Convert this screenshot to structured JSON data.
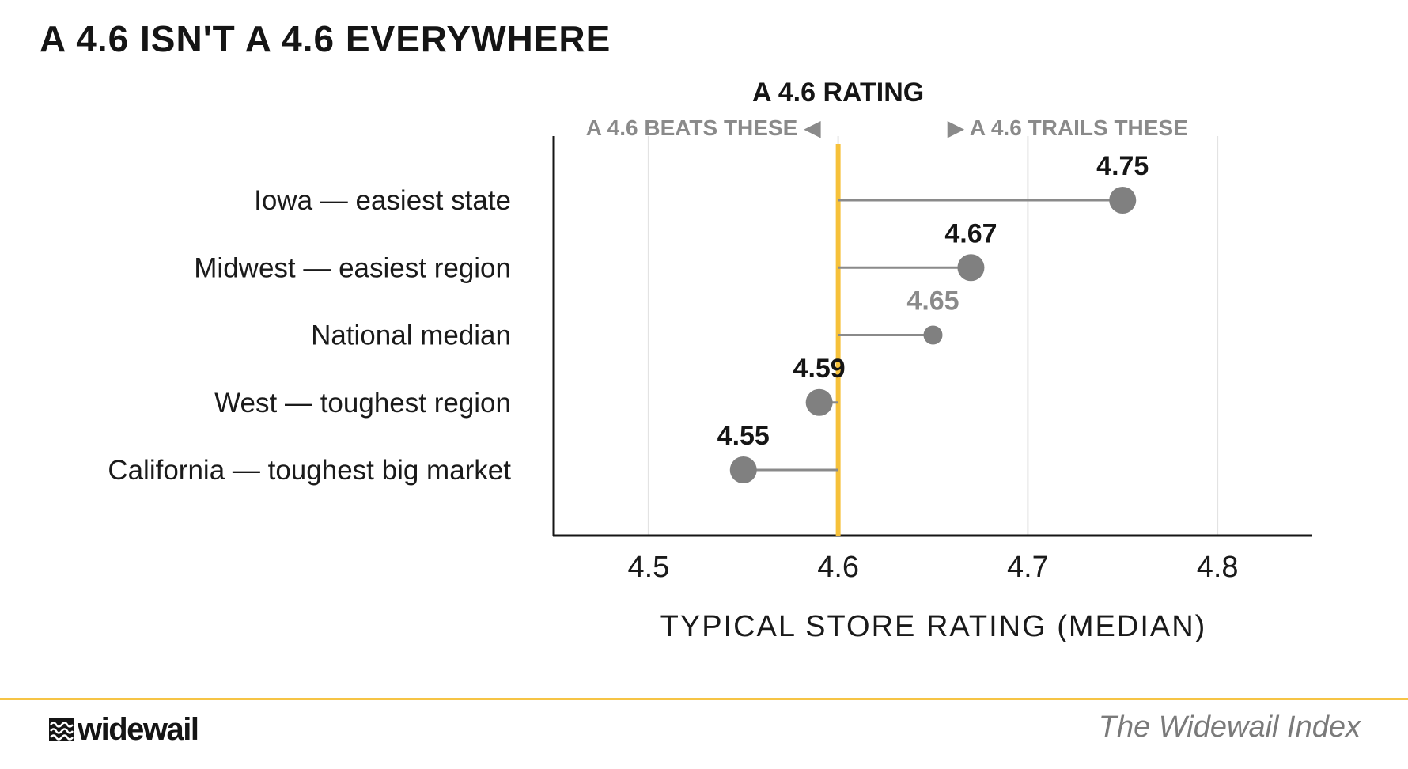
{
  "title": "A 4.6 ISN'T A 4.6 EVERYWHERE",
  "colors": {
    "reference_line": "#f6c13a",
    "dot": "#808080",
    "connector": "#8a8a8a",
    "gridline": "#e3e3e3",
    "muted_label": "#8a8a8a",
    "footer_rule": "#f6c445"
  },
  "chart_data": {
    "type": "dot",
    "reference": {
      "value": 4.6,
      "label": "A 4.6 RATING",
      "left_note": "A 4.6 BEATS THESE ◀",
      "right_note": "▶ A 4.6 TRAILS THESE"
    },
    "categories": [
      "Iowa — easiest state",
      "Midwest — easiest region",
      "National median",
      "West — toughest region",
      "California — toughest big market"
    ],
    "values": [
      4.75,
      4.67,
      4.65,
      4.59,
      4.55
    ],
    "value_labels": [
      "4.75",
      "4.67",
      "4.65",
      "4.59",
      "4.55"
    ],
    "highlight": [
      true,
      true,
      false,
      true,
      true
    ],
    "xlabel": "TYPICAL STORE RATING (MEDIAN)",
    "xlim": [
      4.45,
      4.85
    ],
    "xticks": [
      4.5,
      4.6,
      4.7,
      4.8
    ],
    "xtick_labels": [
      "4.5",
      "4.6",
      "4.7",
      "4.8"
    ],
    "grid": true
  },
  "footer": {
    "logo_icon": "widewail-waves-icon",
    "logo_text": "widewail",
    "source": "The Widewail Index"
  }
}
